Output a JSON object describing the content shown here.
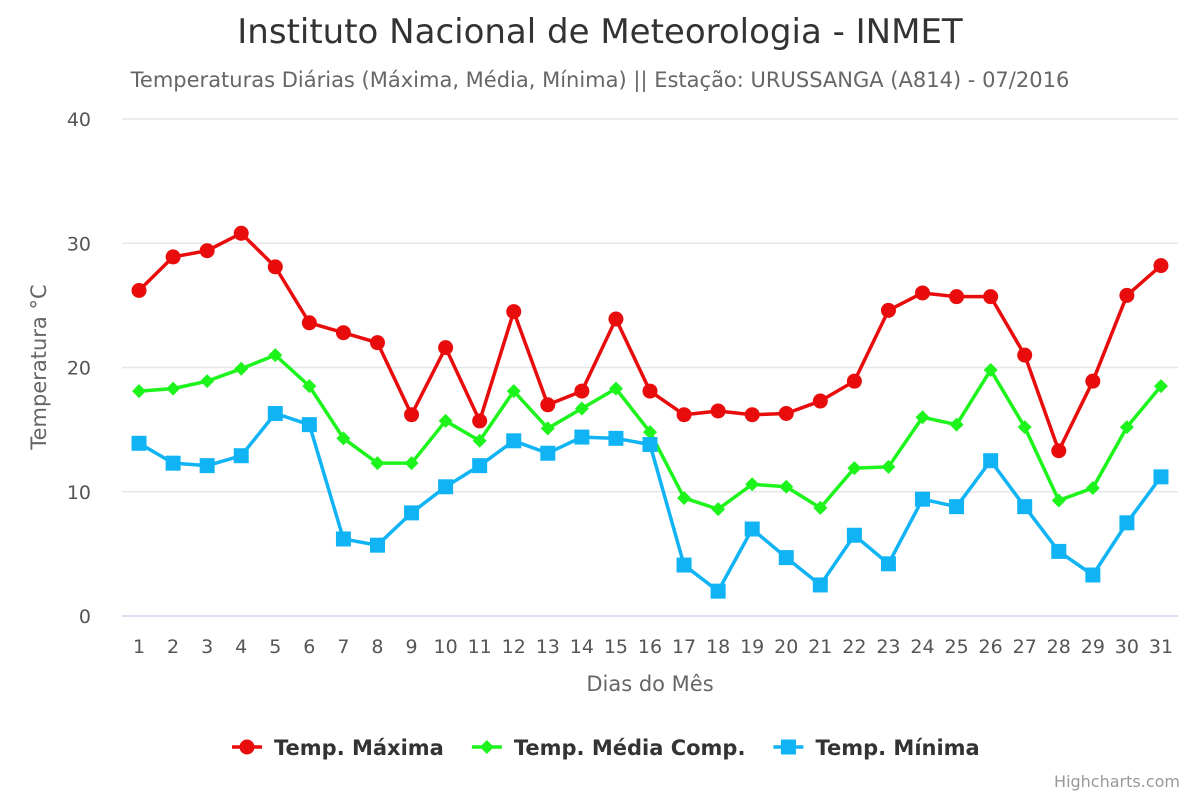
{
  "chart_data": {
    "type": "line",
    "title": "Instituto Nacional de Meteorologia - INMET",
    "subtitle": "Temperaturas Diárias (Máxima, Média, Mínima) || Estação: URUSSANGA (A814) - 07/2016",
    "xlabel": "Dias do Mês",
    "ylabel": "Temperatura °C",
    "ylim": [
      0,
      40
    ],
    "yticks": [
      0,
      10,
      20,
      30,
      40
    ],
    "grid": true,
    "legend": "bottom-center",
    "categories": [
      "1",
      "2",
      "3",
      "4",
      "5",
      "6",
      "7",
      "8",
      "9",
      "10",
      "11",
      "12",
      "13",
      "14",
      "15",
      "16",
      "17",
      "18",
      "19",
      "20",
      "21",
      "22",
      "23",
      "24",
      "25",
      "26",
      "27",
      "28",
      "29",
      "30",
      "31"
    ],
    "series": [
      {
        "name": "Temp. Máxima",
        "color": "#e80c0c",
        "marker": "circle",
        "values": [
          26.2,
          28.9,
          29.4,
          30.8,
          28.1,
          23.6,
          22.8,
          22.0,
          16.2,
          21.6,
          15.7,
          24.5,
          17.0,
          18.1,
          23.9,
          18.1,
          16.2,
          16.5,
          16.2,
          16.3,
          17.3,
          18.9,
          24.6,
          26.0,
          25.7,
          25.7,
          21.0,
          13.3,
          18.9,
          25.8,
          28.2
        ]
      },
      {
        "name": "Temp. Média Comp.",
        "color": "#1cf41c",
        "marker": "diamond",
        "values": [
          18.1,
          18.3,
          18.9,
          19.9,
          21.0,
          18.5,
          14.3,
          12.3,
          12.3,
          15.7,
          14.1,
          18.1,
          15.1,
          16.7,
          18.3,
          14.8,
          9.5,
          8.6,
          10.6,
          10.4,
          8.7,
          11.9,
          12.0,
          16.0,
          15.4,
          19.8,
          15.2,
          9.3,
          10.3,
          15.2,
          18.5
        ]
      },
      {
        "name": "Temp. Mínima",
        "color": "#10b4f4",
        "marker": "square",
        "values": [
          13.9,
          12.3,
          12.1,
          12.9,
          16.3,
          15.4,
          6.2,
          5.7,
          8.3,
          10.4,
          12.1,
          14.1,
          13.1,
          14.4,
          14.3,
          13.8,
          4.1,
          2.0,
          7.0,
          4.7,
          2.5,
          6.5,
          4.2,
          9.4,
          8.8,
          12.5,
          8.8,
          5.2,
          3.3,
          7.5,
          11.2
        ]
      }
    ]
  },
  "credits": "Highcharts.com"
}
